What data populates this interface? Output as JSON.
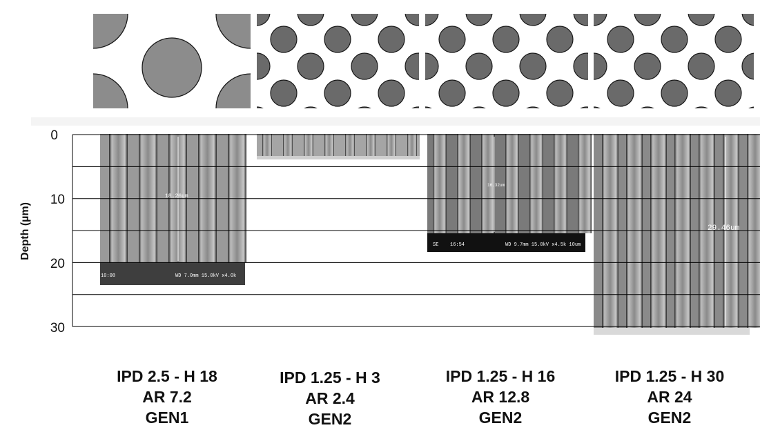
{
  "y_axis": {
    "label": "Depth (µm)",
    "ticks": [
      "0",
      "10",
      "20",
      "30"
    ]
  },
  "samples": [
    {
      "caption": [
        "IPD 2.5 -  H 18",
        "AR 7.2",
        "GEN1"
      ],
      "sem": {
        "measure": "18.26um",
        "time": "10:08",
        "info": "WD 7.0mm 15.0kV x4.0k",
        "left_tag": ""
      }
    },
    {
      "caption": [
        "IPD 1.25 -  H 3",
        "AR 2.4",
        "GEN2"
      ],
      "sem": {
        "measure": "",
        "time": "",
        "info": "",
        "left_tag": ""
      }
    },
    {
      "caption": [
        "IPD 1.25 -  H 16",
        "AR 12.8",
        "GEN2"
      ],
      "sem": {
        "measure": "16.32um",
        "time": "16:54",
        "info": "WD 9.7mm 15.0kV x4.5k  10um",
        "left_tag": "SE"
      }
    },
    {
      "caption": [
        "IPD 1.25 -  H 30",
        "AR 24",
        "GEN2"
      ],
      "sem": {
        "measure": "29.46um",
        "time": "",
        "info": "",
        "left_tag": ""
      }
    }
  ],
  "colors": {
    "pillar_gen1": "#8c8c8c",
    "pillar_gen2": "#6a6a6a",
    "pillar_stroke": "#1a1a1a",
    "gridline": "#000000"
  }
}
